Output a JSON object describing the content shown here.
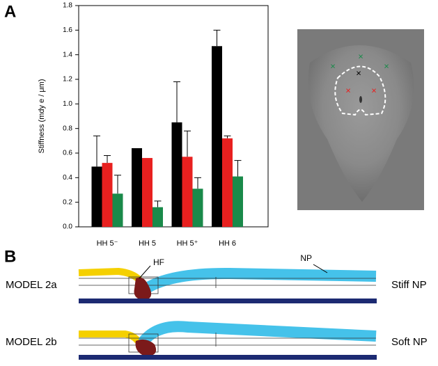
{
  "panels": {
    "a": "A",
    "b": "B"
  },
  "chart_data": {
    "type": "bar",
    "ylabel": "Stiffness (mdy e / μm)",
    "categories": [
      "HH 5⁻",
      "HH 5",
      "HH 5⁺",
      "HH 6"
    ],
    "series": [
      {
        "color": "#000000",
        "values": [
          0.49,
          0.64,
          0.85,
          1.47
        ],
        "errors": [
          0.25,
          null,
          0.33,
          0.13
        ]
      },
      {
        "color": "#e8201f",
        "values": [
          0.52,
          0.56,
          0.57,
          0.72
        ],
        "errors": [
          0.06,
          null,
          0.21,
          0.02
        ]
      },
      {
        "color": "#1a8a4a",
        "values": [
          0.27,
          0.16,
          0.31,
          0.41
        ],
        "errors": [
          0.15,
          0.05,
          0.09,
          0.13
        ]
      }
    ],
    "ylim": [
      0,
      1.8
    ],
    "yticks": [
      {
        "value": 0,
        "label": "0.0"
      },
      0.2,
      0.4,
      0.6,
      0.8,
      {
        "value": 1,
        "label": "1.0"
      },
      1.2,
      1.4,
      1.6,
      1.8
    ]
  },
  "annotations": {
    "hf": "HF",
    "np": "NP"
  },
  "models": [
    {
      "label": "MODEL 2a",
      "condition": "Stiff NP"
    },
    {
      "label": "MODEL 2b",
      "condition": "Soft NP"
    }
  ]
}
